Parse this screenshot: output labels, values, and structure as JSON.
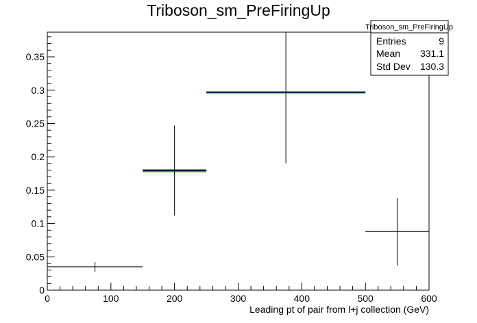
{
  "chart_data": {
    "type": "histogram",
    "title": "Triboson_sm_PreFiringUp",
    "xlabel": "Leading pt of pair from l+j collection (GeV)",
    "ylabel": "",
    "xlim": [
      0,
      600
    ],
    "ylim": [
      0,
      0.387
    ],
    "x_ticks": [
      0,
      100,
      200,
      300,
      400,
      500,
      600
    ],
    "y_ticks": [
      0,
      0.05,
      0.1,
      0.15,
      0.2,
      0.25,
      0.3,
      0.35
    ],
    "x_tick_labels": [
      "0",
      "100",
      "200",
      "300",
      "400",
      "500",
      "600"
    ],
    "y_tick_labels": [
      "0",
      "0.05",
      "0.1",
      "0.15",
      "0.2",
      "0.25",
      "0.3",
      "0.35"
    ],
    "points": [
      {
        "x": 75,
        "xlow": 0,
        "xhigh": 150,
        "y": 0.035,
        "ylow": 0.027,
        "yhigh": 0.042
      },
      {
        "x": 200,
        "xlow": 150,
        "xhigh": 250,
        "y": 0.179,
        "ylow": 0.112,
        "yhigh": 0.247
      },
      {
        "x": 375,
        "xlow": 250,
        "xhigh": 500,
        "y": 0.297,
        "ylow": 0.19,
        "yhigh": 0.387
      },
      {
        "x": 550,
        "xlow": 500,
        "xhigh": 600,
        "y": 0.088,
        "ylow": 0.037,
        "yhigh": 0.138
      }
    ],
    "overlays": [
      {
        "xlow": 150,
        "xhigh": 250,
        "y": 0.178,
        "color": "#20b050"
      },
      {
        "xlow": 150,
        "xhigh": 250,
        "y": 0.18,
        "color": "#000080"
      },
      {
        "xlow": 250,
        "xhigh": 500,
        "y": 0.296,
        "color": "#20b050"
      },
      {
        "xlow": 250,
        "xhigh": 500,
        "y": 0.297,
        "color": "#000080"
      }
    ],
    "stats_box": {
      "title": "Triboson_sm_PreFiringUp",
      "rows": [
        {
          "label": "Entries",
          "value": "9"
        },
        {
          "label": "Mean",
          "value": "331.1"
        },
        {
          "label": "Std Dev",
          "value": "130.3"
        }
      ]
    }
  }
}
